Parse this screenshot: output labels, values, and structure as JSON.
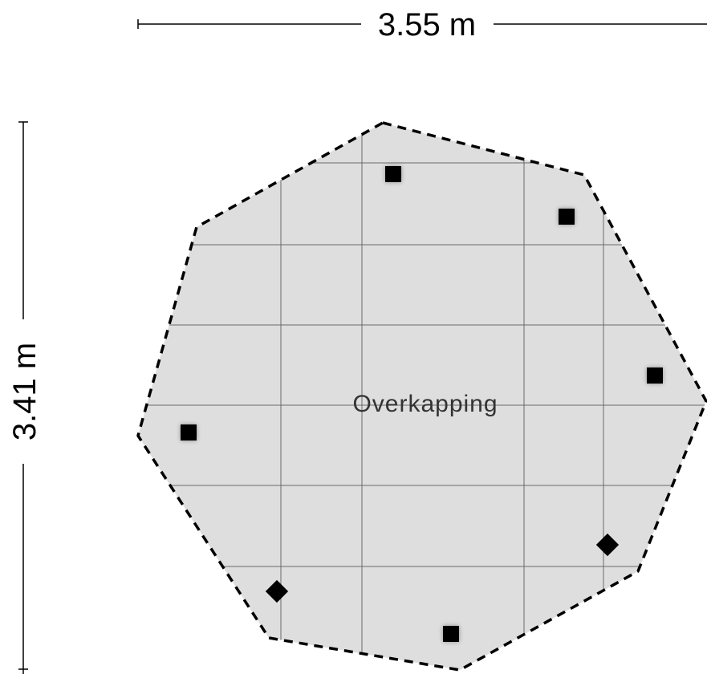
{
  "dimensions": {
    "width_label": "3.55 m",
    "height_label": "3.41 m"
  },
  "room": {
    "name": "Overkapping"
  },
  "colors": {
    "floor_fill": "#dedede",
    "outline": "#000000",
    "grid": "#555555",
    "post": "#000000",
    "background": "#ffffff"
  },
  "icons": {
    "square_post": "square-post-icon",
    "diamond_post": "diamond-post-icon"
  }
}
